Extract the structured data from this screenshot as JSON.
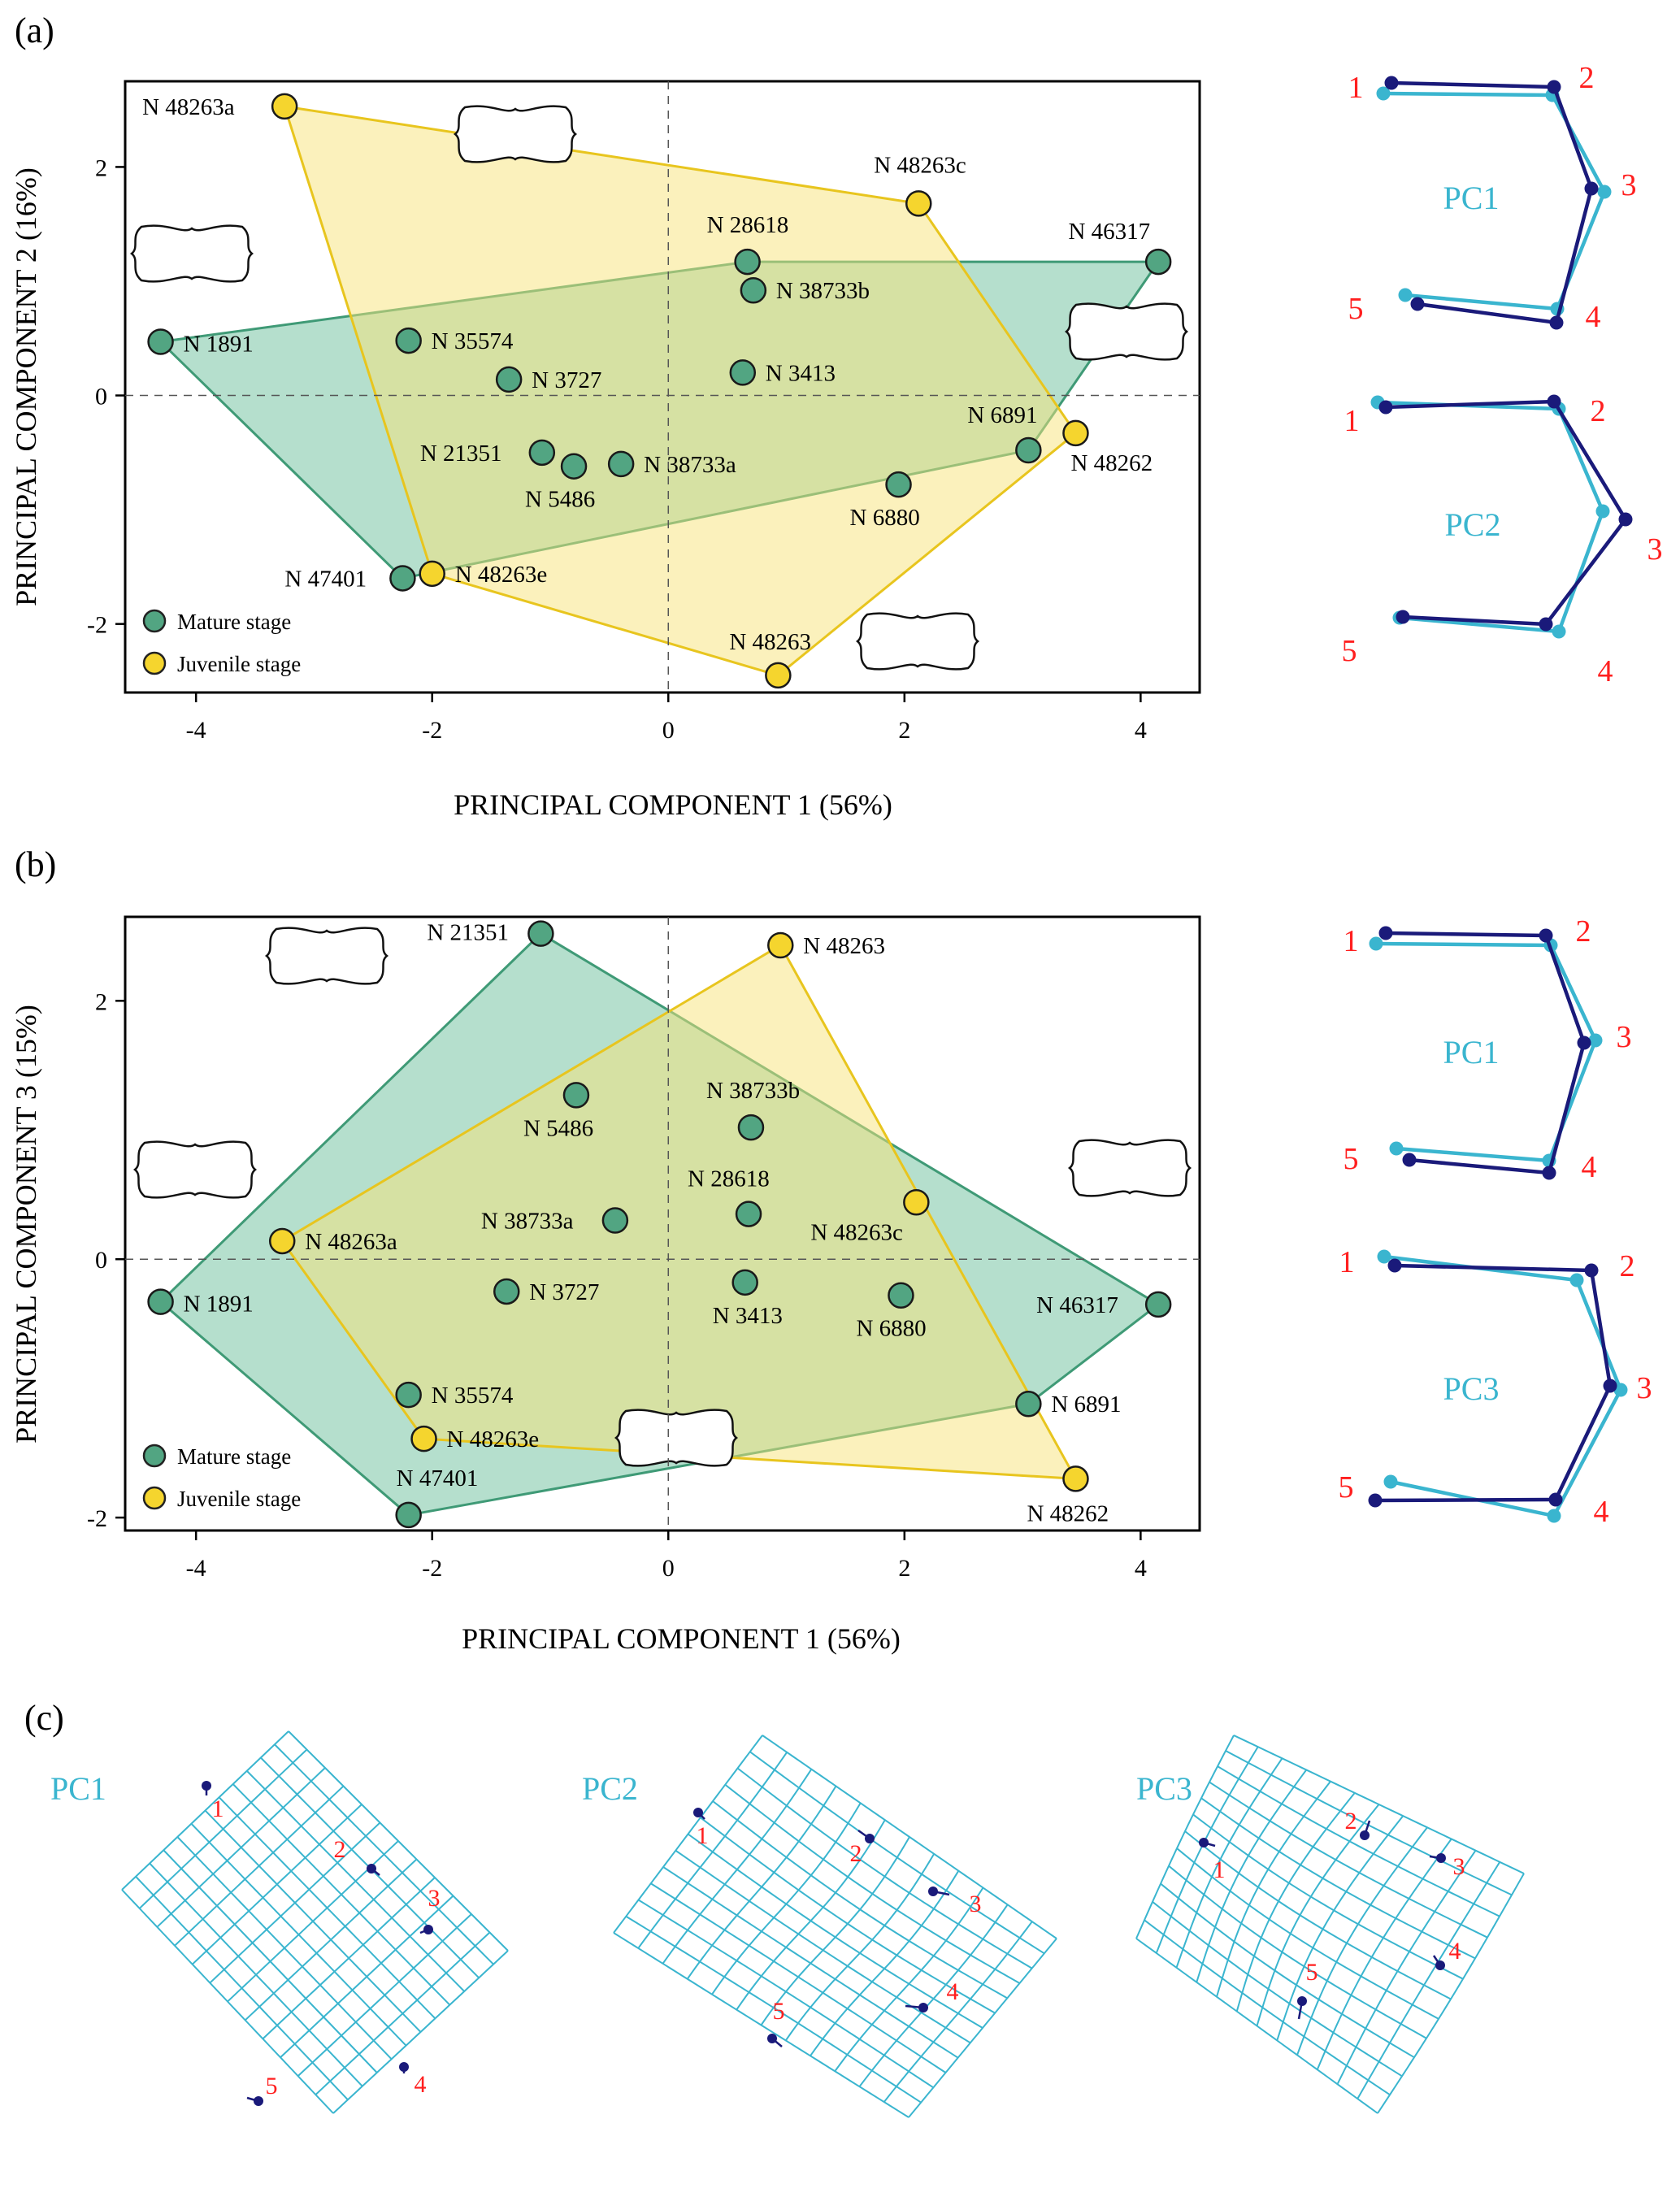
{
  "colors": {
    "mature_fill": "#6cbf9c",
    "mature_stroke": "#3f9a76",
    "mature_point": "#52a582",
    "juvenile_fill": "#f7e37a",
    "juvenile_stroke": "#e8c51e",
    "juvenile_point": "#f5d52e",
    "dark": "#1a1a7a",
    "light": "#3ab5cf",
    "number": "#ff1f1f"
  },
  "panel_labels": {
    "a": "(a)",
    "b": "(b)",
    "c": "(c)"
  },
  "chart_data": [
    {
      "type": "scatter",
      "title": "(a)",
      "xlabel": "PRINCIPAL COMPONENT 1 (56%)",
      "ylabel": "PRINCIPAL COMPONENT 2 (16%)",
      "xlim": [
        -4.6,
        4.5
      ],
      "ylim": [
        -2.6,
        2.75
      ],
      "xticks": [
        -4,
        -2,
        0,
        2,
        4
      ],
      "yticks": [
        -2,
        0,
        2
      ],
      "legend": [
        "Mature stage",
        "Juvenile stage"
      ],
      "series": [
        {
          "name": "Mature stage",
          "points": [
            {
              "label": "N 46317",
              "x": 4.15,
              "y": 1.17
            },
            {
              "label": "N 28618",
              "x": 0.67,
              "y": 1.17
            },
            {
              "label": "N 38733b",
              "x": 0.72,
              "y": 0.92
            },
            {
              "label": "N 1891",
              "x": -4.3,
              "y": 0.47
            },
            {
              "label": "N 35574",
              "x": -2.2,
              "y": 0.48
            },
            {
              "label": "N 3727",
              "x": -1.35,
              "y": 0.14
            },
            {
              "label": "N 3413",
              "x": 0.63,
              "y": 0.2
            },
            {
              "label": "N 21351",
              "x": -1.07,
              "y": -0.5
            },
            {
              "label": "N 5486",
              "x": -0.8,
              "y": -0.62
            },
            {
              "label": "N 38733a",
              "x": -0.4,
              "y": -0.6
            },
            {
              "label": "N 6891",
              "x": 3.05,
              "y": -0.48
            },
            {
              "label": "N 6880",
              "x": 1.95,
              "y": -0.78
            },
            {
              "label": "N 47401",
              "x": -2.25,
              "y": -1.6
            }
          ]
        },
        {
          "name": "Juvenile stage",
          "points": [
            {
              "label": "N 48263a",
              "x": -3.25,
              "y": 2.53
            },
            {
              "label": "N 48263c",
              "x": 2.12,
              "y": 1.68
            },
            {
              "label": "N 48262",
              "x": 3.45,
              "y": -0.33
            },
            {
              "label": "N 48263e",
              "x": -2.0,
              "y": -1.56
            },
            {
              "label": "N 48263",
              "x": 0.93,
              "y": -2.45
            }
          ]
        }
      ],
      "hulls": {
        "Mature stage": [
          "N 1891",
          "N 28618",
          "N 46317",
          "N 6891",
          "N 47401"
        ],
        "Juvenile stage": [
          "N 48263a",
          "N 48263c",
          "N 48262",
          "N 48263",
          "N 48263e"
        ]
      }
    },
    {
      "type": "scatter",
      "title": "(b)",
      "xlabel": "PRINCIPAL COMPONENT 1 (56%)",
      "ylabel": "PRINCIPAL COMPONENT 3 (15%)",
      "xlim": [
        -4.6,
        4.5
      ],
      "ylim": [
        -2.1,
        2.65
      ],
      "xticks": [
        -4,
        -2,
        0,
        2,
        4
      ],
      "yticks": [
        -2,
        0,
        2
      ],
      "legend": [
        "Mature stage",
        "Juvenile stage"
      ],
      "series": [
        {
          "name": "Mature stage",
          "points": [
            {
              "label": "N 21351",
              "x": -1.08,
              "y": 2.52
            },
            {
              "label": "N 5486",
              "x": -0.78,
              "y": 1.27
            },
            {
              "label": "N 38733b",
              "x": 0.7,
              "y": 1.02
            },
            {
              "label": "N 28618",
              "x": 0.68,
              "y": 0.35
            },
            {
              "label": "N 38733a",
              "x": -0.45,
              "y": 0.3
            },
            {
              "label": "N 1891",
              "x": -4.3,
              "y": -0.33
            },
            {
              "label": "N 3727",
              "x": -1.37,
              "y": -0.25
            },
            {
              "label": "N 3413",
              "x": 0.65,
              "y": -0.18
            },
            {
              "label": "N 6880",
              "x": 1.97,
              "y": -0.28
            },
            {
              "label": "N 46317",
              "x": 4.15,
              "y": -0.35
            },
            {
              "label": "N 35574",
              "x": -2.2,
              "y": -1.05
            },
            {
              "label": "N 6891",
              "x": 3.05,
              "y": -1.12
            },
            {
              "label": "N 47401",
              "x": -2.2,
              "y": -1.98
            }
          ]
        },
        {
          "name": "Juvenile stage",
          "points": [
            {
              "label": "N 48263",
              "x": 0.95,
              "y": 2.43
            },
            {
              "label": "N 48263c",
              "x": 2.1,
              "y": 0.44
            },
            {
              "label": "N 48263a",
              "x": -3.27,
              "y": 0.14
            },
            {
              "label": "N 48263e",
              "x": -2.07,
              "y": -1.39
            },
            {
              "label": "N 48262",
              "x": 3.45,
              "y": -1.7
            }
          ]
        }
      ],
      "hulls": {
        "Mature stage": [
          "N 21351",
          "N 46317",
          "N 6891",
          "N 47401",
          "N 1891"
        ],
        "Juvenile stage": [
          "N 48263",
          "N 48262",
          "N 48263e",
          "N 48263a"
        ]
      }
    }
  ],
  "landmark_plots": {
    "pc_labels": {
      "a_top": "PC1",
      "a_bottom": "PC2",
      "b_top": "PC1",
      "b_bottom": "PC3"
    },
    "numbers": [
      "1",
      "2",
      "3",
      "4",
      "5"
    ]
  },
  "deformation_grids": {
    "labels": [
      "PC1",
      "PC2",
      "PC3"
    ],
    "numbers": [
      "1",
      "2",
      "3",
      "4",
      "5"
    ]
  }
}
